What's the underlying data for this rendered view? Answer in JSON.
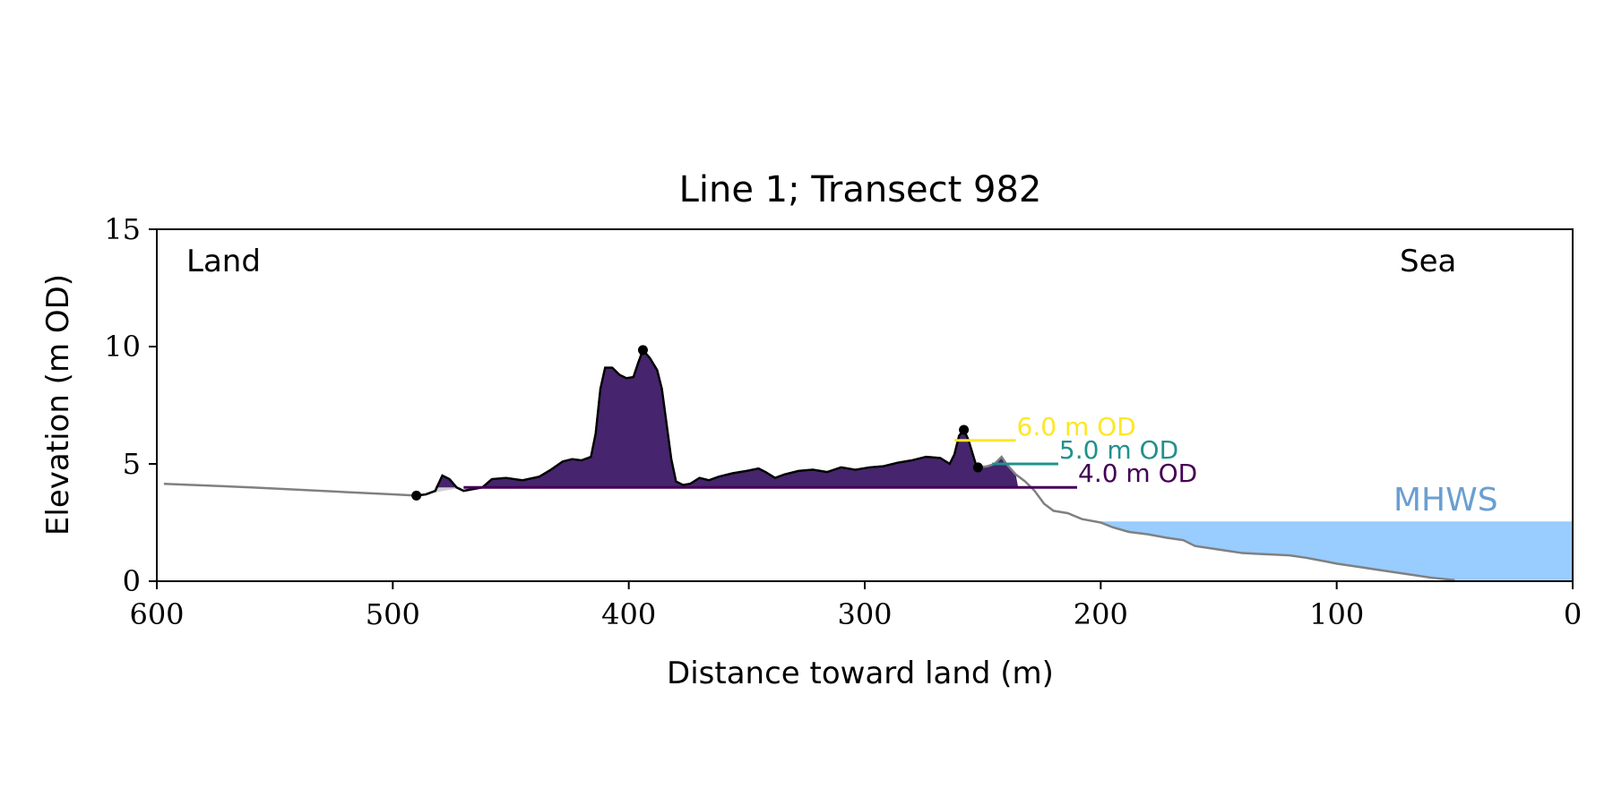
{
  "chart_data": {
    "type": "area",
    "title": "Line 1; Transect 982",
    "xlabel": "Distance toward land (m)",
    "ylabel": "Elevation (m OD)",
    "xlim": [
      600,
      0
    ],
    "ylim": [
      0,
      15
    ],
    "x_reversed": true,
    "x_ticks": [
      600,
      500,
      400,
      300,
      200,
      100,
      0
    ],
    "y_ticks": [
      0,
      5,
      10,
      15
    ],
    "grid": false,
    "annotations": {
      "land_label": "Land",
      "sea_label": "Sea",
      "mhws_label": "MHWS"
    },
    "mhws": {
      "elevation": 2.55,
      "x_from": 200,
      "x_to": 0,
      "color": "#99ccff",
      "label_color": "#6a9fd0"
    },
    "profile": {
      "color": "#808080",
      "points": [
        [
          597,
          4.15
        ],
        [
          560,
          4.0
        ],
        [
          520,
          3.8
        ],
        [
          500,
          3.7
        ],
        [
          490,
          3.65
        ],
        [
          486,
          3.7
        ],
        [
          482,
          3.85
        ],
        [
          479,
          4.5
        ],
        [
          476,
          4.35
        ],
        [
          473,
          4.0
        ],
        [
          470,
          3.85
        ],
        [
          462,
          4.0
        ],
        [
          458,
          4.35
        ],
        [
          452,
          4.4
        ],
        [
          445,
          4.3
        ],
        [
          438,
          4.45
        ],
        [
          433,
          4.75
        ],
        [
          428,
          5.1
        ],
        [
          424,
          5.2
        ],
        [
          420,
          5.15
        ],
        [
          416,
          5.3
        ],
        [
          414,
          6.3
        ],
        [
          412,
          8.2
        ],
        [
          410,
          9.1
        ],
        [
          407,
          9.1
        ],
        [
          404,
          8.8
        ],
        [
          401,
          8.65
        ],
        [
          398,
          8.7
        ],
        [
          396,
          9.3
        ],
        [
          394,
          9.85
        ],
        [
          391,
          9.5
        ],
        [
          388,
          9.0
        ],
        [
          386,
          8.2
        ],
        [
          384,
          6.7
        ],
        [
          382,
          5.2
        ],
        [
          380,
          4.25
        ],
        [
          377,
          4.1
        ],
        [
          374,
          4.15
        ],
        [
          370,
          4.4
        ],
        [
          366,
          4.3
        ],
        [
          362,
          4.45
        ],
        [
          356,
          4.6
        ],
        [
          350,
          4.7
        ],
        [
          345,
          4.8
        ],
        [
          342,
          4.65
        ],
        [
          338,
          4.4
        ],
        [
          334,
          4.55
        ],
        [
          328,
          4.7
        ],
        [
          322,
          4.75
        ],
        [
          316,
          4.65
        ],
        [
          310,
          4.85
        ],
        [
          304,
          4.75
        ],
        [
          298,
          4.85
        ],
        [
          292,
          4.9
        ],
        [
          286,
          5.05
        ],
        [
          280,
          5.15
        ],
        [
          274,
          5.3
        ],
        [
          268,
          5.25
        ],
        [
          264,
          5.0
        ],
        [
          262,
          5.4
        ],
        [
          260,
          6.2
        ],
        [
          258,
          6.45
        ],
        [
          256,
          6.0
        ],
        [
          253,
          5.0
        ],
        [
          252,
          4.85
        ],
        [
          248,
          4.9
        ],
        [
          245,
          5.0
        ],
        [
          242,
          5.3
        ],
        [
          240,
          5.0
        ],
        [
          236,
          4.55
        ],
        [
          232,
          4.25
        ],
        [
          228,
          3.85
        ],
        [
          224,
          3.3
        ],
        [
          220,
          3.0
        ],
        [
          214,
          2.9
        ],
        [
          208,
          2.65
        ],
        [
          200,
          2.5
        ],
        [
          195,
          2.3
        ],
        [
          188,
          2.1
        ],
        [
          180,
          2.0
        ],
        [
          172,
          1.85
        ],
        [
          165,
          1.75
        ],
        [
          160,
          1.5
        ],
        [
          150,
          1.35
        ],
        [
          140,
          1.2
        ],
        [
          130,
          1.15
        ],
        [
          120,
          1.1
        ],
        [
          113,
          1.0
        ],
        [
          105,
          0.85
        ],
        [
          100,
          0.75
        ],
        [
          90,
          0.6
        ],
        [
          80,
          0.45
        ],
        [
          70,
          0.3
        ],
        [
          60,
          0.15
        ],
        [
          50,
          0.05
        ]
      ]
    },
    "dune_fill": {
      "base": 4.0,
      "x_from": 490,
      "x_to": 235,
      "color": "#46246e"
    },
    "lower_fill": {
      "color": "#d0d0d0"
    },
    "crest_markers": [
      [
        490,
        3.65
      ],
      [
        394,
        9.85
      ],
      [
        258,
        6.45
      ],
      [
        252,
        4.85
      ]
    ],
    "levels": [
      {
        "label": "6.0 m OD",
        "elevation": 6.0,
        "color": "#fde725",
        "x_from": 262,
        "x_to": 236
      },
      {
        "label": "5.0 m OD",
        "elevation": 5.0,
        "color": "#21918c",
        "x_from": 246,
        "x_to": 218
      },
      {
        "label": "4.0 m OD",
        "elevation": 4.0,
        "color": "#440154",
        "x_from": 470,
        "x_to": 210
      }
    ]
  }
}
